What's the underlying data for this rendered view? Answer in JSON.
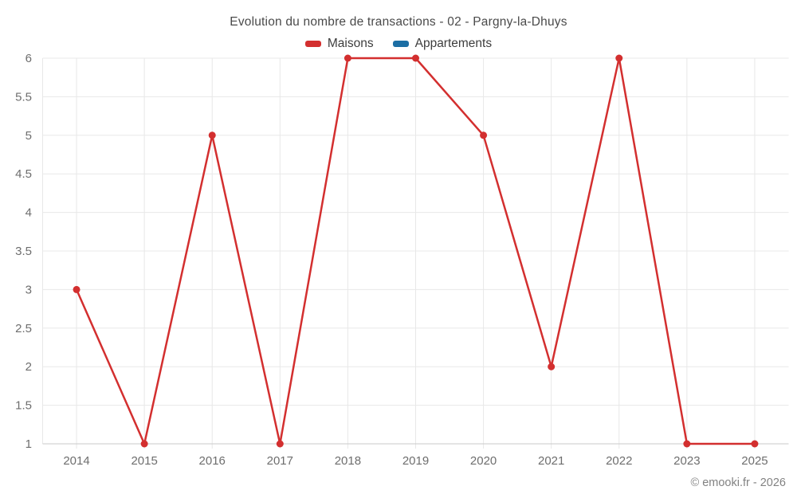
{
  "chart_data": {
    "type": "line",
    "title": "Evolution du nombre de transactions - 02 - Pargny-la-Dhuys",
    "categories": [
      "2014",
      "2015",
      "2016",
      "2017",
      "2018",
      "2019",
      "2020",
      "2021",
      "2022",
      "2023",
      "2025"
    ],
    "series": [
      {
        "name": "Maisons",
        "color": "#d32f2f",
        "values": [
          3,
          1,
          5,
          1,
          6,
          6,
          5,
          2,
          6,
          1,
          1
        ]
      },
      {
        "name": "Appartements",
        "color": "#1c6ea4",
        "values": []
      }
    ],
    "xlabel": "",
    "ylabel": "",
    "ylim": [
      1,
      6
    ],
    "ytick_step": 0.5,
    "yticks": [
      "1",
      "1.5",
      "2",
      "2.5",
      "3",
      "3.5",
      "4",
      "4.5",
      "5",
      "5.5",
      "6"
    ],
    "grid": true,
    "legend_position": "top"
  },
  "footer": {
    "watermark": "© emooki.fr - 2026"
  },
  "colors": {
    "background": "#ffffff",
    "grid_line": "#e8e8e8",
    "axis_line": "#c9c9c9",
    "tick_label": "#6e6e6e",
    "title_text": "#4a4a4a",
    "legend_text": "#3d3d3d",
    "watermark_text": "#828282"
  }
}
